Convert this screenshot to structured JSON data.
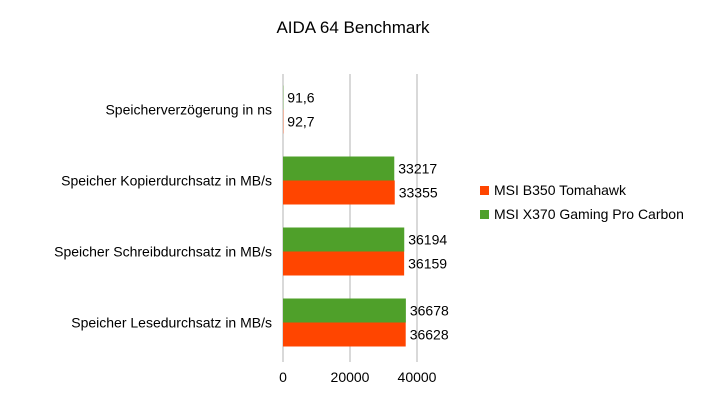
{
  "chart_data": {
    "type": "bar",
    "orientation": "horizontal",
    "title": "AIDA 64 Benchmark",
    "xlabel": "",
    "ylabel": "",
    "xlim": [
      0,
      40000
    ],
    "x_ticks": [
      "0",
      "20000",
      "40000"
    ],
    "grid": true,
    "legend_position": "right",
    "categories": [
      "Speicherverzögerung in ns",
      "Speicher Kopierdurchsatz in MB/s",
      "Speicher Schreibdurchsatz in MB/s",
      "Speicher Lesedurchsatz in MB/s"
    ],
    "series": [
      {
        "name": "MSI B350 Tomahawk",
        "color": "#ff4500",
        "values": [
          92.7,
          33355,
          36159,
          36628
        ],
        "labels": [
          "92,7",
          "33355",
          "36159",
          "36628"
        ]
      },
      {
        "name": "MSI X370 Gaming Pro Carbon",
        "color": "#4fa02a",
        "values": [
          91.6,
          33217,
          36194,
          36678
        ],
        "labels": [
          "91,6",
          "33217",
          "36194",
          "36678"
        ]
      }
    ]
  }
}
